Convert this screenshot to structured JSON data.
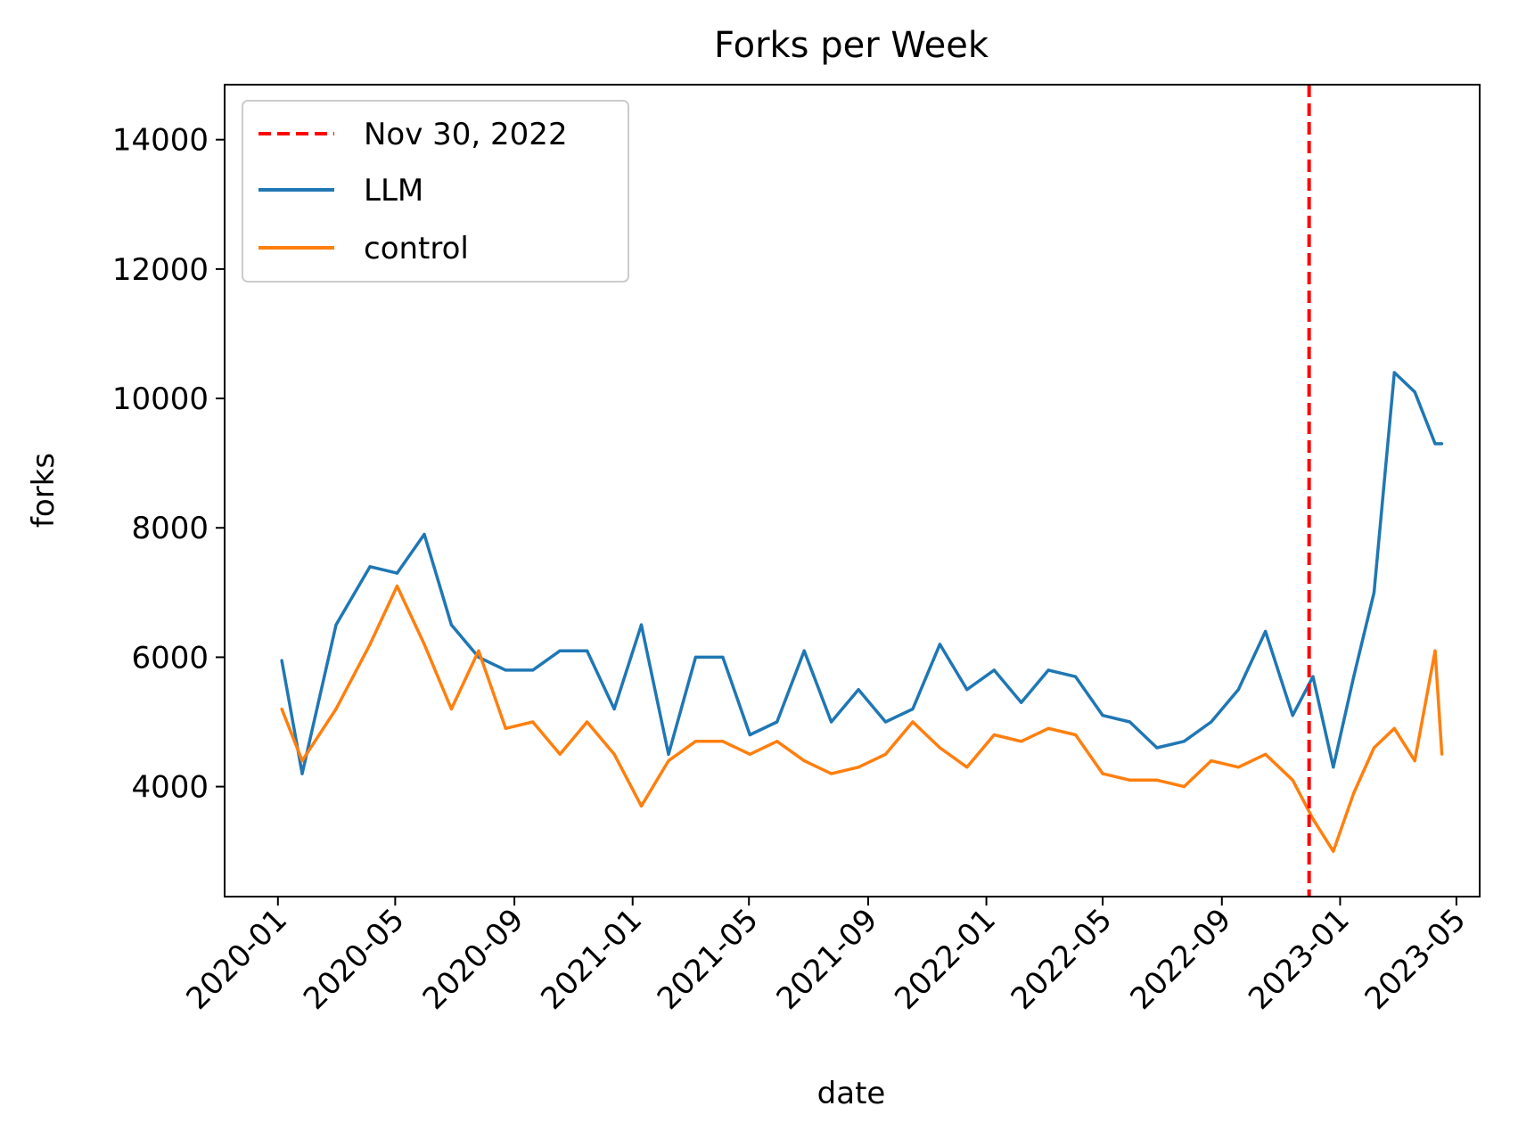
{
  "chart_data": {
    "type": "line",
    "title": "Forks per Week",
    "xlabel": "date",
    "ylabel": "forks",
    "x_tick_labels": [
      "2020-01",
      "2020-05",
      "2020-09",
      "2021-01",
      "2021-05",
      "2021-09",
      "2022-01",
      "2022-05",
      "2022-09",
      "2023-01",
      "2023-05"
    ],
    "x_range": [
      "2019-11-07",
      "2023-05-25"
    ],
    "ylim": [
      2300,
      14850
    ],
    "y_ticks": [
      4000,
      6000,
      8000,
      10000,
      12000,
      14000
    ],
    "y_tick_labels": [
      "4000",
      "6000",
      "8000",
      "10000",
      "12000",
      "14000"
    ],
    "grid": false,
    "legend_position": "top-left",
    "vertical_line": {
      "x": "2022-11-30",
      "label": "Nov 30, 2022",
      "color": "#ff0000",
      "style": "dashed"
    },
    "x": [
      "2020-01-05",
      "2020-01-26",
      "2020-03-01",
      "2020-04-05",
      "2020-05-03",
      "2020-05-31",
      "2020-06-28",
      "2020-07-26",
      "2020-08-23",
      "2020-09-20",
      "2020-10-18",
      "2020-11-15",
      "2020-12-13",
      "2021-01-10",
      "2021-02-07",
      "2021-03-07",
      "2021-04-04",
      "2021-05-02",
      "2021-05-30",
      "2021-06-27",
      "2021-07-25",
      "2021-08-22",
      "2021-09-19",
      "2021-10-17",
      "2021-11-14",
      "2021-12-12",
      "2022-01-09",
      "2022-02-06",
      "2022-03-06",
      "2022-04-03",
      "2022-05-01",
      "2022-05-29",
      "2022-06-26",
      "2022-07-24",
      "2022-08-21",
      "2022-09-18",
      "2022-10-16",
      "2022-11-13",
      "2022-12-04",
      "2022-12-25",
      "2023-01-15",
      "2023-02-05",
      "2023-02-26",
      "2023-03-19",
      "2023-04-09",
      "2023-04-16"
    ],
    "series": [
      {
        "name": "LLM",
        "color": "#1f77b4",
        "values": [
          5950,
          4200,
          6500,
          7400,
          7300,
          7900,
          6500,
          6000,
          5800,
          5800,
          6100,
          6100,
          5200,
          6500,
          4500,
          6000,
          6000,
          4800,
          5000,
          6100,
          5000,
          5500,
          5000,
          5200,
          6200,
          5500,
          5800,
          5300,
          5800,
          5700,
          5100,
          5000,
          4600,
          4700,
          5000,
          5500,
          6400,
          5100,
          5700,
          4300,
          5700,
          7000,
          10400,
          10100,
          9300,
          9300
        ]
      },
      {
        "name": "control",
        "color": "#ff7f0e",
        "values": [
          5200,
          4400,
          5200,
          6200,
          7100,
          6200,
          5200,
          6100,
          4900,
          5000,
          4500,
          5000,
          4500,
          3700,
          4400,
          4700,
          4700,
          4500,
          4700,
          4400,
          4200,
          4300,
          4500,
          5000,
          4600,
          4300,
          4800,
          4700,
          4900,
          4800,
          4200,
          4100,
          4100,
          4000,
          4400,
          4300,
          4500,
          4100,
          3500,
          3000,
          3900,
          4600,
          4900,
          4400,
          6100,
          4500
        ]
      }
    ]
  }
}
